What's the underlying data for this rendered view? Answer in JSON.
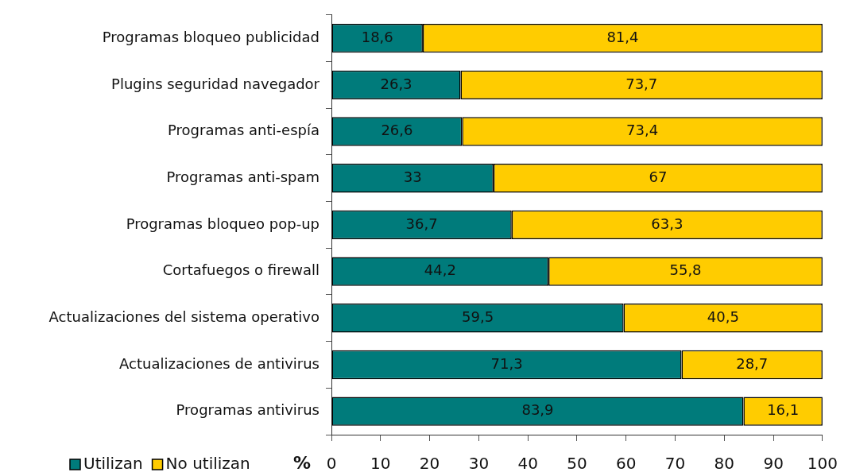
{
  "chart_data": {
    "type": "bar",
    "orientation": "horizontal",
    "stacked": true,
    "categories": [
      "Programas bloqueo publicidad",
      "Plugins seguridad navegador",
      "Programas anti-espía",
      "Programas anti-spam",
      "Programas bloqueo pop-up",
      "Cortafuegos o firewall",
      "Actualizaciones del sistema operativo",
      "Actualizaciones de antivirus",
      "Programas antivirus"
    ],
    "series": [
      {
        "name": "Utilizan",
        "color": "#007b7b",
        "values": [
          18.6,
          26.3,
          26.6,
          33,
          36.7,
          44.2,
          59.5,
          71.3,
          83.9
        ],
        "value_labels": [
          "18,6",
          "26,3",
          "26,6",
          "33",
          "36,7",
          "44,2",
          "59,5",
          "71,3",
          "83,9"
        ]
      },
      {
        "name": "No utilizan",
        "color": "#ffcc00",
        "values": [
          81.4,
          73.7,
          73.4,
          67,
          63.3,
          55.8,
          40.5,
          28.7,
          16.1
        ],
        "value_labels": [
          "81,4",
          "73,7",
          "73,4",
          "67",
          "63,3",
          "55,8",
          "40,5",
          "28,7",
          "16,1"
        ]
      }
    ],
    "xlim": [
      0,
      100
    ],
    "xticks": [
      0,
      10,
      20,
      30,
      40,
      50,
      60,
      70,
      80,
      90,
      100
    ],
    "xlabel": "%",
    "legend": "bottom left"
  }
}
